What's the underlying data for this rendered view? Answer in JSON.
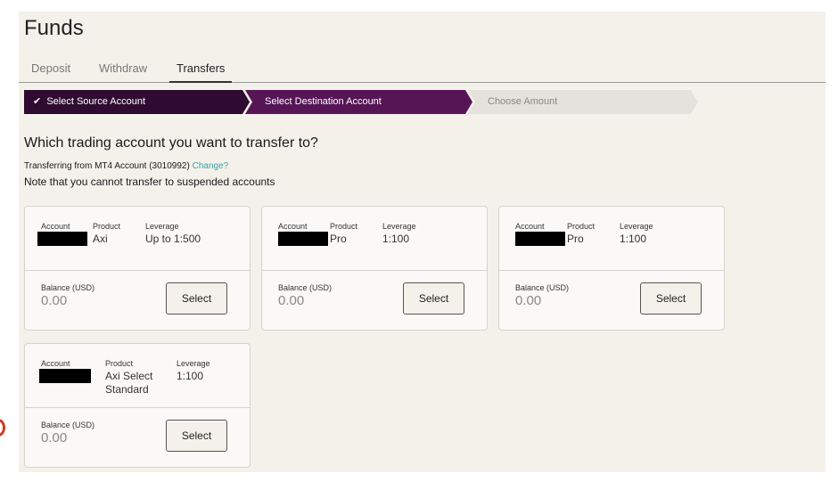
{
  "page": {
    "title": "Funds"
  },
  "tabs": [
    {
      "label": "Deposit"
    },
    {
      "label": "Withdraw"
    },
    {
      "label": "Transfers",
      "active": true
    }
  ],
  "stepper": {
    "check_icon": "✔",
    "steps": [
      {
        "label": "Select Source Account",
        "state": "done"
      },
      {
        "label": "Select Destination Account",
        "state": "active"
      },
      {
        "label": "Choose Amount",
        "state": "pending"
      }
    ]
  },
  "question": "Which trading account you want to transfer to?",
  "source": {
    "text": "Transferring from MT4 Account (3010992)",
    "change_link": "Change?"
  },
  "note": "Note that you cannot transfer to suspended accounts",
  "labels": {
    "account": "Account",
    "product": "Product",
    "leverage": "Leverage",
    "balance": "Balance (USD)",
    "select": "Select"
  },
  "accounts": [
    {
      "product": "Axi",
      "leverage": "Up to 1:500",
      "balance": "0.00"
    },
    {
      "product": "Pro",
      "leverage": "1:100",
      "balance": "0.00"
    },
    {
      "product": "Pro",
      "leverage": "1:100",
      "balance": "0.00"
    },
    {
      "product": "Axi Select Standard",
      "leverage": "1:100",
      "balance": "0.00"
    }
  ],
  "colors": {
    "step_done": "#2f0b31",
    "step_active": "#561656",
    "step_pending": "#e5e2dd",
    "link": "#3aa0a0",
    "background": "#f4f1eb"
  }
}
